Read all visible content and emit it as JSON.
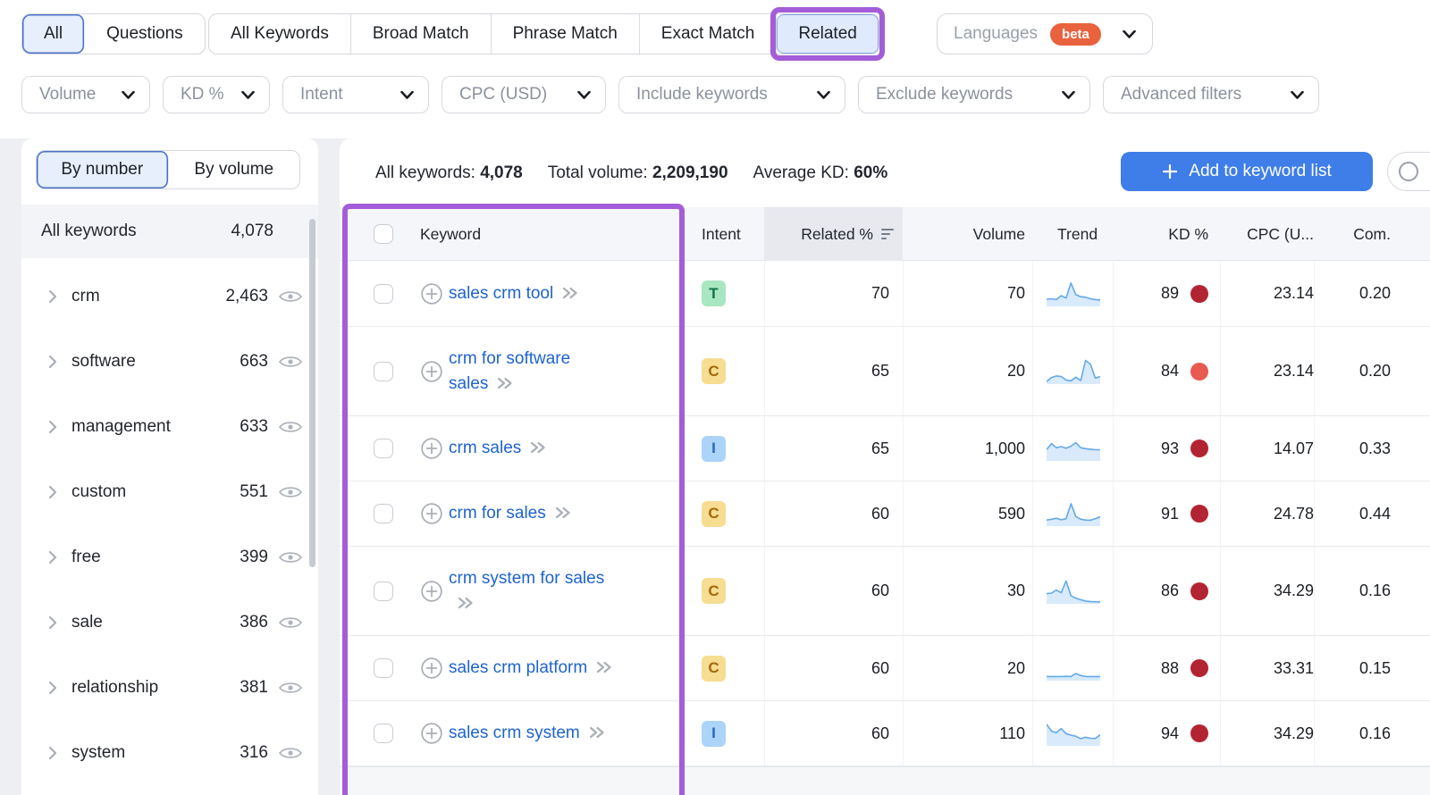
{
  "colors": {
    "accent_blue": "#3f7de8",
    "annotation_purple": "#a45dd8",
    "link_blue": "#1e63cf",
    "kd_dark_red": "#b32433",
    "kd_light_red": "#e85b52",
    "spark_line": "#64a9e9",
    "spark_fill": "#d9eafc",
    "beta_orange": "#e8623e"
  },
  "tabs": {
    "scope": [
      {
        "label": "All",
        "selected": true
      },
      {
        "label": "Questions",
        "selected": false
      }
    ],
    "match": [
      {
        "label": "All Keywords",
        "selected": false,
        "highlighted": false
      },
      {
        "label": "Broad Match",
        "selected": false,
        "highlighted": false
      },
      {
        "label": "Phrase Match",
        "selected": false,
        "highlighted": false
      },
      {
        "label": "Exact Match",
        "selected": false,
        "highlighted": false
      },
      {
        "label": "Related",
        "selected": true,
        "highlighted": true
      }
    ],
    "languages": {
      "label": "Languages",
      "badge": "beta"
    }
  },
  "filters": [
    "Volume",
    "KD %",
    "Intent",
    "CPC (USD)",
    "Include keywords",
    "Exclude keywords",
    "Advanced filters"
  ],
  "sidebar": {
    "view_toggle": [
      {
        "label": "By number",
        "selected": true
      },
      {
        "label": "By volume",
        "selected": false
      }
    ],
    "all_keywords": {
      "label": "All keywords",
      "count": "4,078"
    },
    "groups": [
      {
        "label": "crm",
        "count": "2,463"
      },
      {
        "label": "software",
        "count": "663"
      },
      {
        "label": "management",
        "count": "633"
      },
      {
        "label": "custom",
        "count": "551"
      },
      {
        "label": "free",
        "count": "399"
      },
      {
        "label": "sale",
        "count": "386"
      },
      {
        "label": "relationship",
        "count": "381"
      },
      {
        "label": "system",
        "count": "316"
      }
    ]
  },
  "summary": {
    "all_keywords": {
      "label": "All keywords:",
      "value": "4,078"
    },
    "total_volume": {
      "label": "Total volume:",
      "value": "2,209,190"
    },
    "average_kd": {
      "label": "Average KD:",
      "value": "60%"
    },
    "add_button": "Add to keyword list"
  },
  "table": {
    "columns": {
      "keyword": "Keyword",
      "intent": "Intent",
      "related": "Related %",
      "volume": "Volume",
      "trend": "Trend",
      "kd": "KD %",
      "cpc": "CPC (U...",
      "com": "Com."
    },
    "rows": [
      {
        "lines": [
          "sales crm tool"
        ],
        "intent": "T",
        "related": "70",
        "volume": "70",
        "kd": "89",
        "kd_level": "dark",
        "cpc": "23.14",
        "com": "0.20",
        "trend_spark": [
          28,
          30,
          27,
          42,
          33,
          92,
          46,
          38,
          36,
          30,
          27,
          25
        ]
      },
      {
        "lines": [
          "crm for software",
          "sales"
        ],
        "intent": "C",
        "related": "65",
        "volume": "20",
        "kd": "84",
        "kd_level": "light",
        "cpc": "23.14",
        "com": "0.20",
        "trend_spark": [
          10,
          26,
          32,
          30,
          16,
          13,
          27,
          14,
          93,
          78,
          24,
          30
        ]
      },
      {
        "lines": [
          "crm sales"
        ],
        "intent": "I",
        "related": "65",
        "volume": "1,000",
        "kd": "93",
        "kd_level": "dark",
        "cpc": "14.07",
        "com": "0.33",
        "trend_spark": [
          45,
          68,
          52,
          56,
          50,
          58,
          72,
          52,
          48,
          46,
          44,
          44
        ]
      },
      {
        "lines": [
          "crm for sales"
        ],
        "intent": "C",
        "related": "60",
        "volume": "590",
        "kd": "91",
        "kd_level": "dark",
        "cpc": "24.78",
        "com": "0.44",
        "trend_spark": [
          24,
          27,
          31,
          25,
          29,
          88,
          38,
          27,
          24,
          23,
          29,
          37
        ]
      },
      {
        "lines": [
          "crm system for sales",
          ""
        ],
        "intent": "C",
        "related": "60",
        "volume": "30",
        "kd": "86",
        "kd_level": "dark",
        "cpc": "34.29",
        "com": "0.16",
        "trend_spark": [
          40,
          42,
          54,
          44,
          90,
          32,
          22,
          16,
          11,
          9,
          8,
          8
        ]
      },
      {
        "lines": [
          "sales crm platform"
        ],
        "intent": "C",
        "related": "60",
        "volume": "20",
        "kd": "88",
        "kd_level": "dark",
        "cpc": "33.31",
        "com": "0.15",
        "trend_spark": [
          16,
          16,
          16,
          16,
          17,
          16,
          28,
          20,
          16,
          16,
          16,
          16
        ]
      },
      {
        "lines": [
          "sales crm system"
        ],
        "intent": "I",
        "related": "60",
        "volume": "110",
        "kd": "94",
        "kd_level": "dark",
        "cpc": "34.29",
        "com": "0.16",
        "trend_spark": [
          85,
          58,
          52,
          68,
          48,
          42,
          38,
          28,
          34,
          30,
          29,
          44
        ]
      }
    ]
  }
}
